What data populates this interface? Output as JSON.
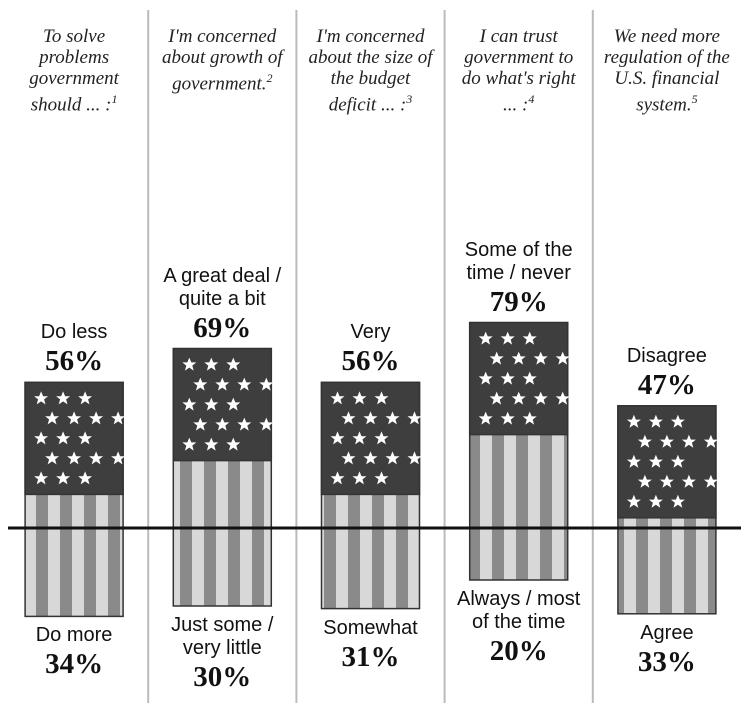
{
  "chart_data": {
    "type": "diverging-bar",
    "categories": [
      "To solve problems government should ... :",
      "I'm concerned about growth of government.",
      "I'm concerned about the size of the budget deficit ... :",
      "I can trust government to do what's right ... :",
      "We need more regulation of the U.S. financial system."
    ],
    "footnotes": [
      "1",
      "2",
      "3",
      "4",
      "5"
    ],
    "series": [
      {
        "labels": [
          "Do less",
          "A great deal / quite a bit",
          "Very",
          "Some of the time / never",
          "Disagree"
        ],
        "values": [
          56,
          69,
          56,
          79,
          47
        ],
        "value_labels": [
          "56%",
          "69%",
          "56%",
          "79%",
          "47%"
        ]
      },
      {
        "labels": [
          "Do more",
          "Just some / very little",
          "Somewhat",
          "Always / most of the time",
          "Agree"
        ],
        "values": [
          34,
          30,
          31,
          20,
          33
        ],
        "value_labels": [
          "34%",
          "30%",
          "31%",
          "20%",
          "33%"
        ]
      }
    ]
  }
}
